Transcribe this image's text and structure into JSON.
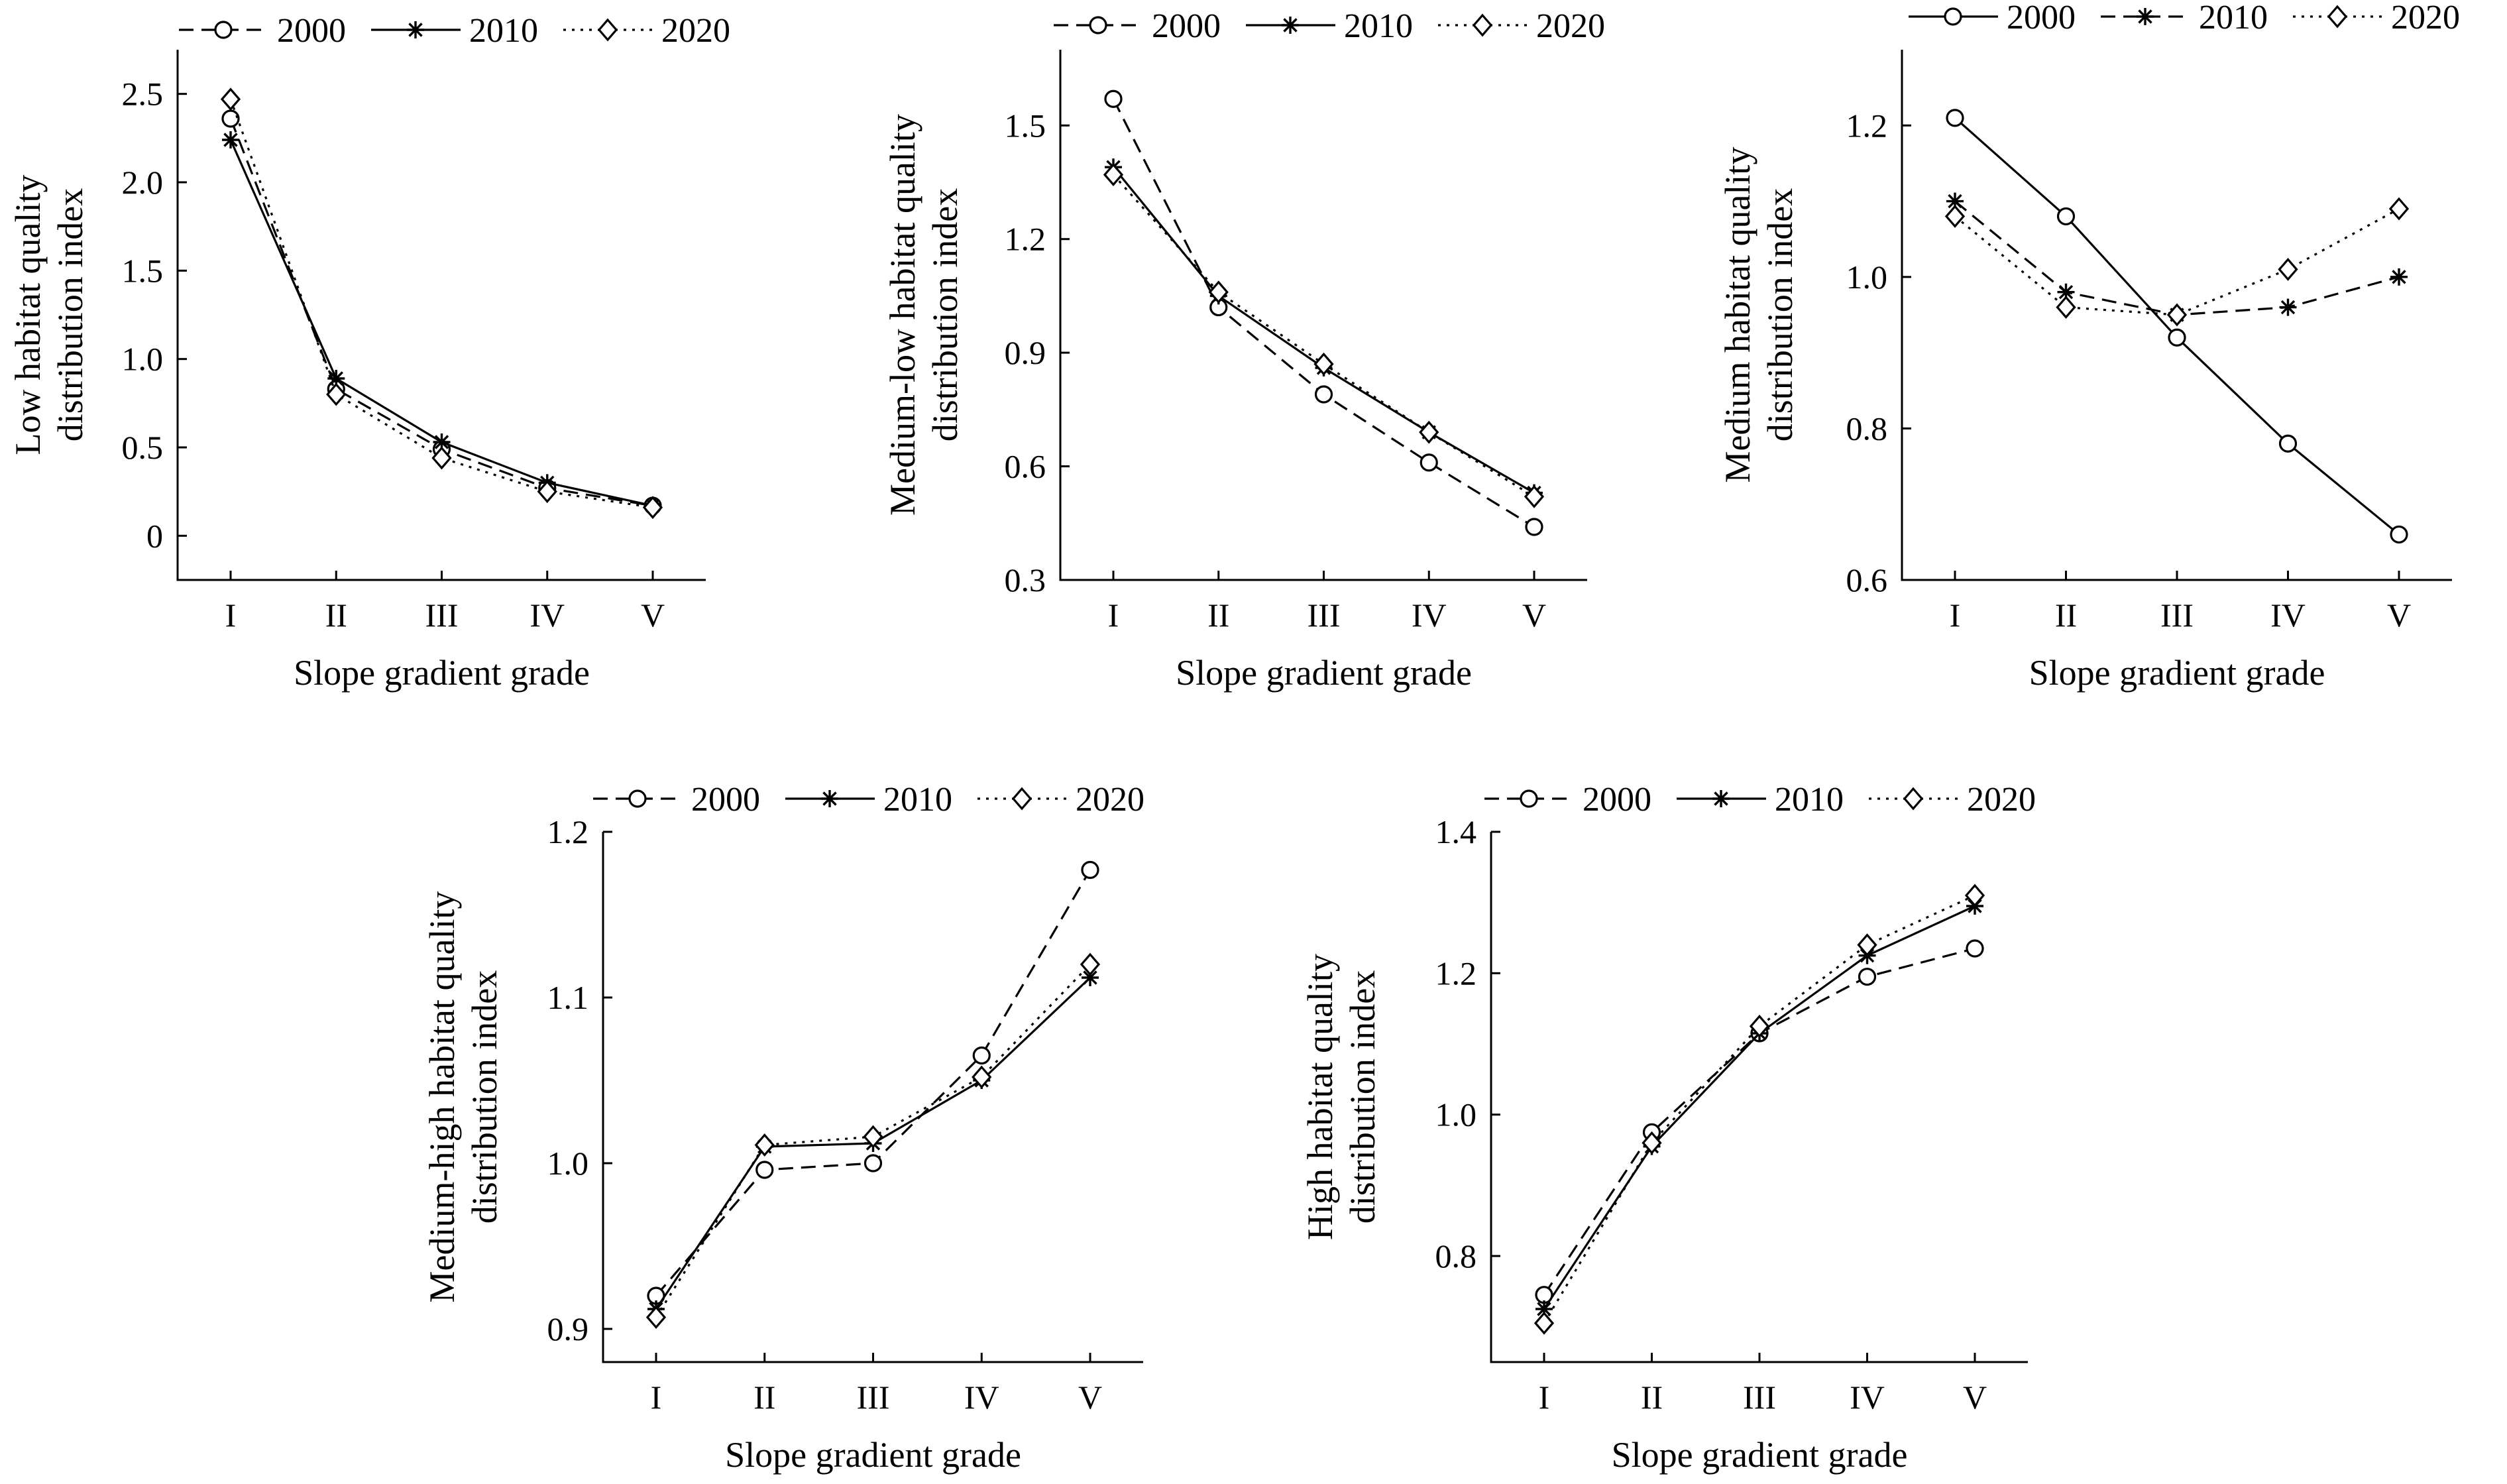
{
  "chart_data": [
    {
      "type": "line",
      "categories": [
        "I",
        "II",
        "III",
        "IV",
        "V"
      ],
      "xlabel": "Slope gradient grade",
      "ylabel": [
        "Low habitat quality",
        "distribution index"
      ],
      "ylim": [
        -0.25,
        2.75
      ],
      "yticks": [
        0,
        0.5,
        1.0,
        1.5,
        2.0,
        2.5
      ],
      "ytick_labels": [
        "0",
        "0.5",
        "1.0",
        "1.5",
        "2.0",
        "2.5"
      ],
      "series": [
        {
          "name": "2000",
          "dash": "dashed",
          "marker": "circle",
          "values": [
            2.36,
            0.83,
            0.49,
            0.27,
            0.17
          ]
        },
        {
          "name": "2010",
          "dash": "solid",
          "marker": "star",
          "values": [
            2.24,
            0.89,
            0.53,
            0.3,
            0.17
          ]
        },
        {
          "name": "2020",
          "dash": "dotted",
          "marker": "diamond",
          "values": [
            2.47,
            0.8,
            0.44,
            0.25,
            0.16
          ]
        }
      ]
    },
    {
      "type": "line",
      "categories": [
        "I",
        "II",
        "III",
        "IV",
        "V"
      ],
      "xlabel": "Slope gradient grade",
      "ylabel": [
        "Medium-low habitat quality",
        "distribution index"
      ],
      "ylim": [
        0.3,
        1.7
      ],
      "yticks": [
        0.3,
        0.6,
        0.9,
        1.2,
        1.5
      ],
      "ytick_labels": [
        "0.3",
        "0.6",
        "0.9",
        "1.2",
        "1.5"
      ],
      "series": [
        {
          "name": "2000",
          "dash": "dashed",
          "marker": "circle",
          "values": [
            1.57,
            1.02,
            0.79,
            0.61,
            0.44
          ]
        },
        {
          "name": "2010",
          "dash": "solid",
          "marker": "star",
          "values": [
            1.39,
            1.05,
            0.86,
            0.69,
            0.53
          ]
        },
        {
          "name": "2020",
          "dash": "dotted",
          "marker": "diamond",
          "values": [
            1.37,
            1.06,
            0.87,
            0.69,
            0.52
          ]
        }
      ]
    },
    {
      "type": "line",
      "categories": [
        "I",
        "II",
        "III",
        "IV",
        "V"
      ],
      "xlabel": "Slope gradient grade",
      "ylabel": [
        "Medium habitat quality",
        "distribution index"
      ],
      "ylim": [
        0.6,
        1.3
      ],
      "yticks": [
        0.6,
        0.8,
        1.0,
        1.2
      ],
      "ytick_labels": [
        "0.6",
        "0.8",
        "1.0",
        "1.2"
      ],
      "series": [
        {
          "name": "2000",
          "dash": "solid",
          "marker": "circle",
          "values": [
            1.21,
            1.08,
            0.92,
            0.78,
            0.66
          ]
        },
        {
          "name": "2010",
          "dash": "dashed",
          "marker": "star",
          "values": [
            1.1,
            0.98,
            0.95,
            0.96,
            1.0
          ]
        },
        {
          "name": "2020",
          "dash": "dotted",
          "marker": "diamond",
          "values": [
            1.08,
            0.96,
            0.95,
            1.01,
            1.09
          ]
        }
      ]
    },
    {
      "type": "line",
      "categories": [
        "I",
        "II",
        "III",
        "IV",
        "V"
      ],
      "xlabel": "Slope gradient grade",
      "ylabel": [
        "Medium-high habitat quality",
        "distribution index"
      ],
      "ylim": [
        0.88,
        1.2
      ],
      "yticks": [
        0.9,
        1.0,
        1.1,
        1.2
      ],
      "ytick_labels": [
        "0.9",
        "1.0",
        "1.1",
        "1.2"
      ],
      "series": [
        {
          "name": "2000",
          "dash": "dashed",
          "marker": "circle",
          "values": [
            0.92,
            0.996,
            1.0,
            1.065,
            1.177
          ]
        },
        {
          "name": "2010",
          "dash": "solid",
          "marker": "star",
          "values": [
            0.912,
            1.01,
            1.012,
            1.05,
            1.112
          ]
        },
        {
          "name": "2020",
          "dash": "dotted",
          "marker": "diamond",
          "values": [
            0.907,
            1.011,
            1.016,
            1.052,
            1.12
          ]
        }
      ]
    },
    {
      "type": "line",
      "categories": [
        "I",
        "II",
        "III",
        "IV",
        "V"
      ],
      "xlabel": "Slope gradient grade",
      "ylabel": [
        "High habitat quality",
        "distribution index"
      ],
      "ylim": [
        0.65,
        1.4
      ],
      "yticks": [
        0.8,
        1.0,
        1.2,
        1.4
      ],
      "ytick_labels": [
        "0.8",
        "1.0",
        "1.2",
        "1.4"
      ],
      "series": [
        {
          "name": "2000",
          "dash": "dashed",
          "marker": "circle",
          "values": [
            0.745,
            0.975,
            1.115,
            1.195,
            1.235
          ]
        },
        {
          "name": "2010",
          "dash": "solid",
          "marker": "star",
          "values": [
            0.725,
            0.955,
            1.115,
            1.225,
            1.295
          ]
        },
        {
          "name": "2020",
          "dash": "dotted",
          "marker": "diamond",
          "values": [
            0.705,
            0.96,
            1.125,
            1.24,
            1.31
          ]
        }
      ]
    }
  ]
}
